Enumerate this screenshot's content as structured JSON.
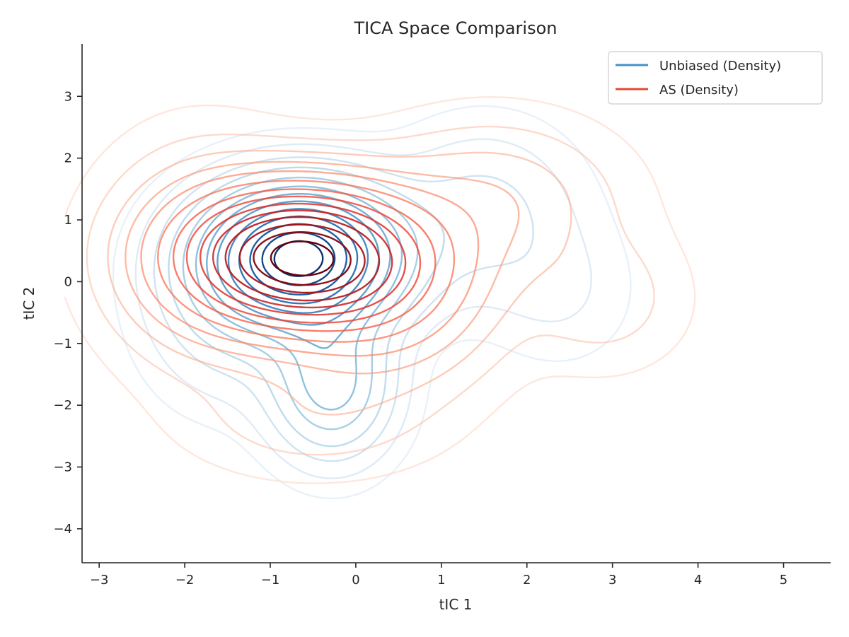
{
  "chart_data": {
    "type": "contour",
    "title": "TICA Space Comparison",
    "xlabel": "tIC 1",
    "ylabel": "tIC 2",
    "xlim": [
      -3.2,
      5.55
    ],
    "ylim": [
      -4.55,
      3.85
    ],
    "xticks": [
      -3,
      -2,
      -1,
      0,
      1,
      2,
      3,
      4,
      5
    ],
    "yticks": [
      -4,
      -3,
      -2,
      -1,
      0,
      1,
      2,
      3
    ],
    "xtick_labels": [
      "−3",
      "−2",
      "−1",
      "0",
      "1",
      "2",
      "3",
      "4",
      "5"
    ],
    "ytick_labels": [
      "−4",
      "−3",
      "−2",
      "−1",
      "0",
      "1",
      "2",
      "3"
    ],
    "grid": false,
    "legend_position": "top-right",
    "series": [
      {
        "name": "Unbiased (Density)",
        "legend_color": "#4292c6",
        "palette": "Blues",
        "peak": [
          -0.65,
          0.4
        ],
        "components": [
          {
            "cx": -0.65,
            "cy": 0.4,
            "sx": 0.72,
            "sy": 0.72,
            "w": 1.0
          },
          {
            "cx": -0.28,
            "cy": -1.65,
            "sx": 0.45,
            "sy": 0.75,
            "w": 0.33
          },
          {
            "cx": 1.5,
            "cy": 1.1,
            "sx": 0.7,
            "sy": 0.9,
            "w": 0.1
          },
          {
            "cx": 2.4,
            "cy": -0.2,
            "sx": 0.55,
            "sy": 0.75,
            "w": 0.04
          },
          {
            "cx": -1.5,
            "cy": -0.6,
            "sx": 0.6,
            "sy": 0.9,
            "w": 0.1
          }
        ],
        "levels": [
          0.015,
          0.04,
          0.08,
          0.13,
          0.2,
          0.28,
          0.36,
          0.45,
          0.55,
          0.65,
          0.75,
          0.85,
          0.93
        ]
      },
      {
        "name": "AS (Density)",
        "legend_color": "#e34a33",
        "palette": "Reds",
        "peak": [
          -0.65,
          0.4
        ],
        "components": [
          {
            "cx": -0.65,
            "cy": 0.4,
            "sx": 0.85,
            "sy": 0.7,
            "w": 1.0
          },
          {
            "cx": 0.4,
            "cy": -0.3,
            "sx": 0.8,
            "sy": 0.9,
            "w": 0.18
          },
          {
            "cx": 1.6,
            "cy": 1.3,
            "sx": 0.9,
            "sy": 0.8,
            "w": 0.1
          },
          {
            "cx": 2.9,
            "cy": -0.3,
            "sx": 0.6,
            "sy": 0.7,
            "w": 0.05
          },
          {
            "cx": -1.8,
            "cy": 0.4,
            "sx": 0.7,
            "sy": 1.1,
            "w": 0.12
          },
          {
            "cx": -0.5,
            "cy": -2.2,
            "sx": 0.9,
            "sy": 0.6,
            "w": 0.05
          }
        ],
        "levels": [
          0.01,
          0.03,
          0.06,
          0.1,
          0.15,
          0.22,
          0.3,
          0.38,
          0.47,
          0.56,
          0.65,
          0.75,
          0.84,
          0.93
        ]
      }
    ]
  }
}
